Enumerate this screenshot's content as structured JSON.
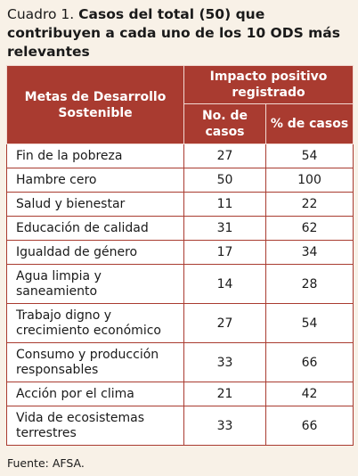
{
  "title": {
    "label": "Cuadro 1.",
    "text": "Casos del total (50) que contribuyen a cada uno de los 10 ODS más relevantes"
  },
  "table": {
    "header": {
      "goals": "Metas de Desarrollo Sostenible",
      "impact": "Impacto positivo registrado",
      "count": "No. de casos",
      "percent": "% de casos"
    },
    "rows": [
      [
        "Fin de la pobreza",
        27,
        54
      ],
      [
        "Hambre cero",
        50,
        100
      ],
      [
        "Salud y bienestar",
        11,
        22
      ],
      [
        "Educación de calidad",
        31,
        62
      ],
      [
        "Igualdad de género",
        17,
        34
      ],
      [
        "Agua limpia y saneamiento",
        14,
        28
      ],
      [
        "Trabajo digno y crecimiento económico",
        27,
        54
      ],
      [
        "Consumo y producción responsables",
        33,
        66
      ],
      [
        "Acción por el clima",
        21,
        42
      ],
      [
        "Vida de ecosistemas terrestres",
        33,
        66
      ]
    ]
  },
  "source": "Fuente: AFSA."
}
